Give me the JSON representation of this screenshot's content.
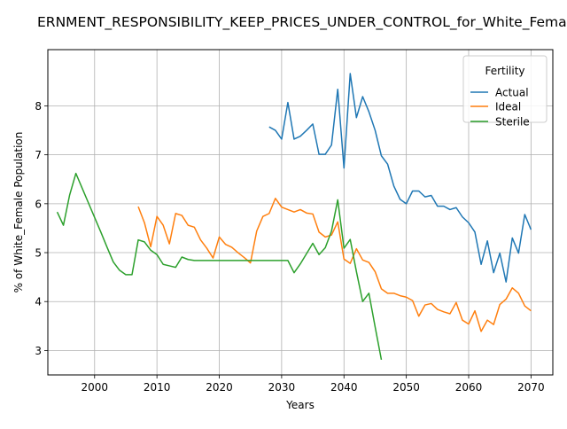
{
  "chart_data": {
    "type": "line",
    "title": "ERNMENT_RESPONSIBILITY_KEEP_PRICES_UNDER_CONTROL_for_White_Femal",
    "xlabel": "Years",
    "ylabel": "% of White_Female Population",
    "xlim": [
      1992.5,
      2073.5
    ],
    "ylim": [
      2.5,
      9.15
    ],
    "xticks": [
      2000,
      2010,
      2020,
      2030,
      2040,
      2050,
      2060,
      2070
    ],
    "yticks": [
      3,
      4,
      5,
      6,
      7,
      8
    ],
    "grid": true,
    "legend": {
      "title": "Fertility",
      "placement": "top-right"
    },
    "series": [
      {
        "name": "Actual",
        "color": "#1f77b4",
        "x": [
          2028,
          2029,
          2030,
          2031,
          2032,
          2033,
          2034,
          2035,
          2036,
          2037,
          2038,
          2039,
          2040,
          2041,
          2042,
          2043,
          2044,
          2045,
          2046,
          2047,
          2048,
          2049,
          2050,
          2051,
          2052,
          2053,
          2054,
          2055,
          2056,
          2057,
          2058,
          2059,
          2060,
          2061,
          2062,
          2063,
          2064,
          2065,
          2066,
          2067,
          2068,
          2069,
          2070
        ],
        "values": [
          7.57,
          7.5,
          7.32,
          8.07,
          7.32,
          7.38,
          7.5,
          7.63,
          7.01,
          7.01,
          7.2,
          8.34,
          6.73,
          8.66,
          7.76,
          8.19,
          7.88,
          7.5,
          6.98,
          6.81,
          6.36,
          6.09,
          6.0,
          6.26,
          6.26,
          6.14,
          6.17,
          5.95,
          5.95,
          5.88,
          5.92,
          5.73,
          5.61,
          5.42,
          4.76,
          5.24,
          4.59,
          4.99,
          4.4,
          5.3,
          4.99,
          5.78,
          5.47
        ]
      },
      {
        "name": "Ideal",
        "color": "#ff7f0e",
        "x": [
          2007,
          2008,
          2009,
          2010,
          2011,
          2012,
          2013,
          2014,
          2015,
          2016,
          2017,
          2018,
          2019,
          2020,
          2021,
          2022,
          2023,
          2024,
          2025,
          2026,
          2027,
          2028,
          2029,
          2030,
          2031,
          2032,
          2033,
          2034,
          2035,
          2036,
          2037,
          2038,
          2039,
          2040,
          2041,
          2042,
          2043,
          2044,
          2045,
          2046,
          2047,
          2048,
          2049,
          2050,
          2051,
          2052,
          2053,
          2054,
          2055,
          2056,
          2057,
          2058,
          2059,
          2060,
          2061,
          2062,
          2063,
          2064,
          2065,
          2066,
          2067,
          2068,
          2069,
          2070
        ],
        "values": [
          5.94,
          5.61,
          5.12,
          5.74,
          5.56,
          5.18,
          5.8,
          5.76,
          5.56,
          5.52,
          5.26,
          5.09,
          4.89,
          5.32,
          5.17,
          5.11,
          5.0,
          4.9,
          4.79,
          5.44,
          5.74,
          5.8,
          6.11,
          5.93,
          5.88,
          5.83,
          5.88,
          5.81,
          5.79,
          5.42,
          5.32,
          5.36,
          5.63,
          4.87,
          4.78,
          5.08,
          4.85,
          4.8,
          4.61,
          4.26,
          4.17,
          4.17,
          4.12,
          4.09,
          4.02,
          3.7,
          3.93,
          3.96,
          3.84,
          3.79,
          3.75,
          3.98,
          3.62,
          3.54,
          3.81,
          3.39,
          3.62,
          3.53,
          3.94,
          4.05,
          4.28,
          4.17,
          3.91,
          3.81
        ]
      },
      {
        "name": "Sterile",
        "color": "#2ca02c",
        "x": [
          1994,
          1995,
          1996,
          1997,
          1998,
          1999,
          2000,
          2001,
          2002,
          2003,
          2004,
          2005,
          2006,
          2007,
          2008,
          2009,
          2010,
          2011,
          2012,
          2013,
          2014,
          2015,
          2016,
          2017,
          2018,
          2019,
          2020,
          2021,
          2022,
          2023,
          2024,
          2025,
          2026,
          2027,
          2028,
          2029,
          2030,
          2031,
          2032,
          2033,
          2034,
          2035,
          2036,
          2037,
          2038,
          2039,
          2040,
          2041,
          2042,
          2043,
          2044,
          2045,
          2046
        ],
        "values": [
          5.83,
          5.56,
          6.18,
          6.62,
          6.32,
          6.02,
          5.72,
          5.42,
          5.11,
          4.81,
          4.64,
          4.55,
          4.55,
          5.26,
          5.22,
          5.05,
          4.96,
          4.76,
          4.73,
          4.7,
          4.91,
          4.86,
          4.84,
          4.84,
          4.84,
          4.84,
          4.84,
          4.84,
          4.84,
          4.84,
          4.84,
          4.84,
          4.84,
          4.84,
          4.84,
          4.84,
          4.84,
          4.84,
          4.59,
          4.77,
          4.98,
          5.19,
          4.96,
          5.1,
          5.44,
          6.08,
          5.09,
          5.27,
          4.61,
          4.0,
          4.17,
          3.48,
          2.81
        ]
      }
    ]
  }
}
